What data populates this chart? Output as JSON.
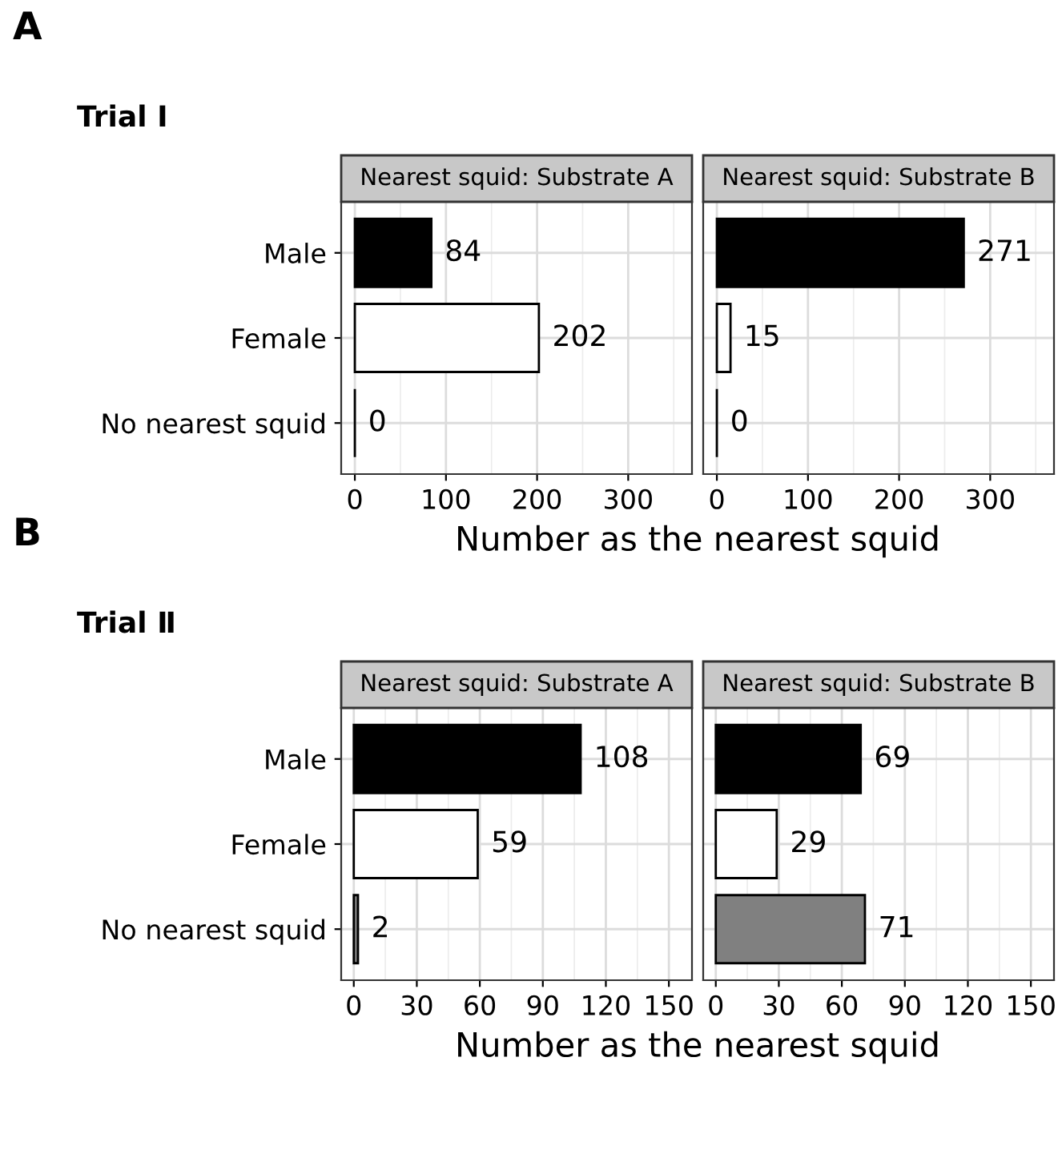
{
  "chart_data": [
    {
      "type": "bar",
      "orientation": "horizontal",
      "title": "Nearest squid: Substrate A",
      "xlabel": "Number as the nearest squid",
      "annotations": [
        "A",
        "Trial Ⅰ"
      ],
      "categories": [
        "Male",
        "Female",
        "No nearest squid"
      ],
      "values": [
        84,
        202,
        0
      ],
      "colors": [
        "#000000",
        "#ffffff",
        "#000000"
      ],
      "xlim": [
        -15,
        370
      ],
      "xticks": [
        0,
        100,
        200,
        300
      ],
      "data_labels": true,
      "grid": true
    },
    {
      "type": "bar",
      "orientation": "horizontal",
      "title": "Nearest squid: Substrate B",
      "categories": [
        null,
        null,
        null
      ],
      "values": [
        271,
        15,
        0
      ],
      "colors": [
        "#000000",
        "#ffffff",
        "#000000"
      ],
      "xlim": [
        -15,
        370
      ],
      "xticks": [
        0,
        100,
        200,
        300
      ],
      "data_labels": true,
      "grid": true,
      "tick_labels": "x"
    },
    {
      "type": "bar",
      "orientation": "horizontal",
      "title": "Nearest squid: Substrate A",
      "xlabel": "Number as the nearest squid",
      "annotations": [
        "B",
        "Trial Ⅱ"
      ],
      "categories": [
        "Male",
        "Female",
        "No nearest squid"
      ],
      "values": [
        108,
        59,
        2
      ],
      "colors": [
        "#000000",
        "#ffffff",
        "#808080"
      ],
      "xlim": [
        -6,
        161
      ],
      "xticks": [
        0,
        30,
        60,
        90,
        120,
        150
      ],
      "data_labels": true,
      "grid": true
    },
    {
      "type": "bar",
      "orientation": "horizontal",
      "title": "Nearest squid: Substrate B",
      "categories": [
        null,
        null,
        null
      ],
      "values": [
        69,
        29,
        71
      ],
      "colors": [
        "#000000",
        "#ffffff",
        "#808080"
      ],
      "xlim": [
        -6,
        161
      ],
      "xticks": [
        0,
        30,
        60,
        90,
        120,
        150
      ],
      "data_labels": true,
      "grid": true,
      "tick_labels": "x"
    }
  ]
}
